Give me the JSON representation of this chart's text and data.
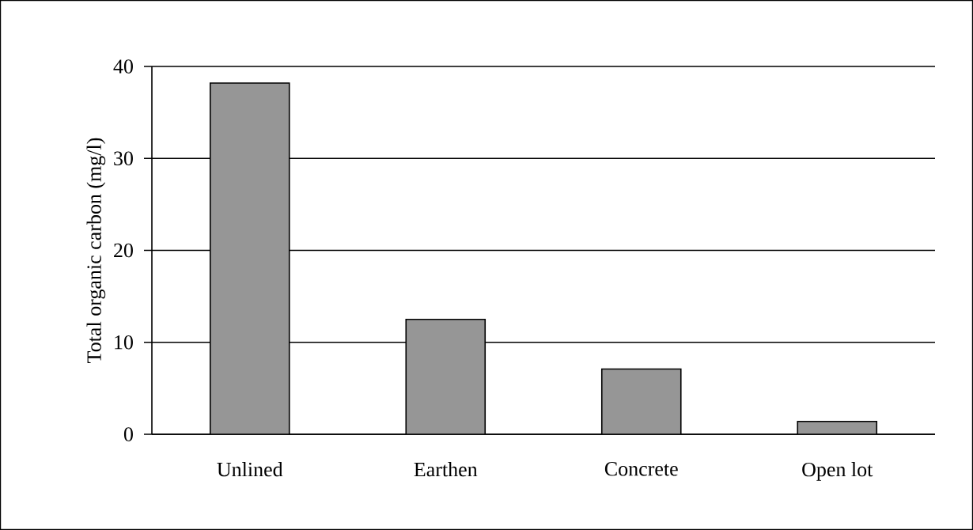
{
  "chart_data": {
    "type": "bar",
    "ylabel": "Total organic carbon (mg/l)",
    "categories": [
      "Unlined",
      "Earthen",
      "Concrete",
      "Open lot"
    ],
    "values": [
      38.2,
      12.5,
      7.1,
      1.4
    ],
    "color": "#969696",
    "ylim": [
      0,
      40
    ],
    "yticks": [
      0,
      10,
      20,
      30,
      40
    ],
    "grid": "y"
  }
}
